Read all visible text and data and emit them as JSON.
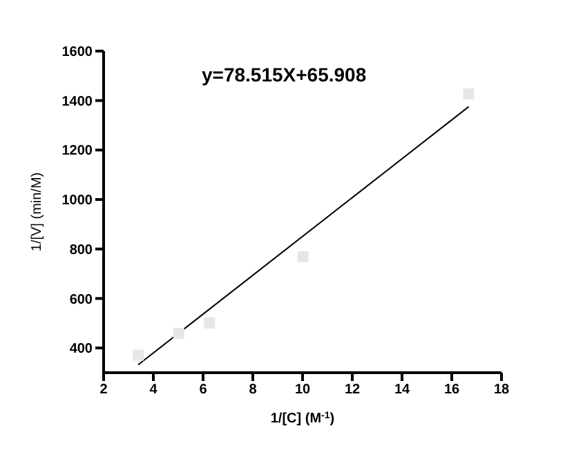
{
  "chart_data": {
    "type": "scatter",
    "xlabel": "1/[C] (M$^{-1}$)",
    "ylabel": "1/[V] (min/M)",
    "annotations": [
      "y=78.515X+65.908"
    ],
    "xlim": [
      2,
      18
    ],
    "xticks": [
      2,
      4,
      6,
      8,
      10,
      12,
      14,
      16,
      18
    ],
    "ylim": [
      300,
      1600
    ],
    "yticks": [
      400,
      600,
      800,
      1000,
      1200,
      1400,
      1600
    ],
    "grid": false,
    "marker": "square",
    "series": [
      {
        "color": "#e6e6e6",
        "x": [
          3.39,
          5.02,
          6.26,
          10.02,
          16.68
        ],
        "values": [
          371,
          459,
          501,
          769,
          1427
        ]
      },
      {
        "type": "line",
        "color": "#000000",
        "x": [
          3.39,
          16.68
        ],
        "values": [
          332,
          1375
        ],
        "marker": "none",
        "line_style": "solid"
      }
    ]
  }
}
